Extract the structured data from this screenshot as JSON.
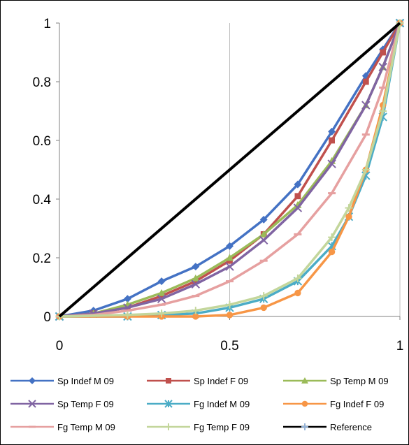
{
  "chart_data": {
    "type": "line",
    "title": "",
    "xlabel": "",
    "ylabel": "",
    "xlim": [
      0,
      1
    ],
    "ylim": [
      0,
      1
    ],
    "x_ticks": [
      0,
      0.5,
      1
    ],
    "x_tick_labels": [
      "0",
      "0.5",
      "1"
    ],
    "y_ticks": [
      0,
      0.2,
      0.4,
      0.6,
      0.8,
      1
    ],
    "y_tick_labels": [
      "0",
      "0.2",
      "0.4",
      "0.6",
      "0.8",
      "1"
    ],
    "grid": "vertical",
    "legend_position": "bottom",
    "series": [
      {
        "name": "Sp Indef M 09",
        "color": "#4472C4",
        "marker": "diamond",
        "x": [
          0,
          0.1,
          0.2,
          0.3,
          0.4,
          0.5,
          0.6,
          0.7,
          0.8,
          0.9,
          0.95,
          1
        ],
        "y": [
          0,
          0.02,
          0.06,
          0.12,
          0.17,
          0.24,
          0.33,
          0.45,
          0.63,
          0.82,
          0.91,
          1
        ]
      },
      {
        "name": "Sp Indef F 09",
        "color": "#C0504D",
        "marker": "square",
        "x": [
          0,
          0.1,
          0.2,
          0.3,
          0.4,
          0.5,
          0.6,
          0.7,
          0.8,
          0.9,
          0.95,
          1
        ],
        "y": [
          0,
          0.01,
          0.03,
          0.07,
          0.12,
          0.19,
          0.28,
          0.41,
          0.6,
          0.8,
          0.9,
          1
        ]
      },
      {
        "name": "Sp Temp M 09",
        "color": "#9BBB59",
        "marker": "triangle",
        "x": [
          0,
          0.1,
          0.2,
          0.3,
          0.4,
          0.5,
          0.6,
          0.7,
          0.8,
          0.9,
          0.95,
          1
        ],
        "y": [
          0,
          0.01,
          0.04,
          0.08,
          0.13,
          0.2,
          0.28,
          0.38,
          0.53,
          0.72,
          0.85,
          1
        ]
      },
      {
        "name": "Sp Temp F 09",
        "color": "#8064A2",
        "marker": "x",
        "x": [
          0,
          0.1,
          0.2,
          0.3,
          0.4,
          0.5,
          0.6,
          0.7,
          0.8,
          0.9,
          0.95,
          1
        ],
        "y": [
          0,
          0.01,
          0.03,
          0.06,
          0.11,
          0.17,
          0.26,
          0.37,
          0.52,
          0.72,
          0.85,
          1
        ]
      },
      {
        "name": "Fg Indef M 09",
        "color": "#4BACC6",
        "marker": "star",
        "x": [
          0,
          0.2,
          0.3,
          0.4,
          0.5,
          0.6,
          0.7,
          0.8,
          0.85,
          0.9,
          0.95,
          1
        ],
        "y": [
          0,
          0,
          0.005,
          0.01,
          0.03,
          0.06,
          0.12,
          0.24,
          0.34,
          0.48,
          0.68,
          1
        ]
      },
      {
        "name": "Fg Indef F 09",
        "color": "#F79646",
        "marker": "circle",
        "x": [
          0,
          0.2,
          0.3,
          0.4,
          0.5,
          0.6,
          0.7,
          0.8,
          0.85,
          0.9,
          0.95,
          1
        ],
        "y": [
          0,
          0,
          0,
          0,
          0.005,
          0.03,
          0.08,
          0.22,
          0.34,
          0.5,
          0.72,
          1
        ]
      },
      {
        "name": "Fg Temp M 09",
        "color": "#E6A0A0",
        "marker": "dash",
        "x": [
          0,
          0.1,
          0.2,
          0.3,
          0.4,
          0.5,
          0.6,
          0.7,
          0.8,
          0.9,
          0.95,
          1
        ],
        "y": [
          0,
          0.005,
          0.02,
          0.04,
          0.07,
          0.12,
          0.19,
          0.28,
          0.42,
          0.62,
          0.78,
          1
        ]
      },
      {
        "name": "Fg Temp F 09",
        "color": "#C3D69B",
        "marker": "plus",
        "x": [
          0,
          0.2,
          0.3,
          0.4,
          0.5,
          0.6,
          0.7,
          0.8,
          0.85,
          0.9,
          0.95,
          1
        ],
        "y": [
          0,
          0.005,
          0.01,
          0.02,
          0.04,
          0.07,
          0.13,
          0.27,
          0.37,
          0.5,
          0.7,
          1
        ]
      },
      {
        "name": "Reference",
        "color": "#000000",
        "legend_marker": "plus",
        "legend_marker_color": "#95B3D7",
        "x": [
          0,
          1
        ],
        "y": [
          0,
          1
        ]
      }
    ]
  }
}
